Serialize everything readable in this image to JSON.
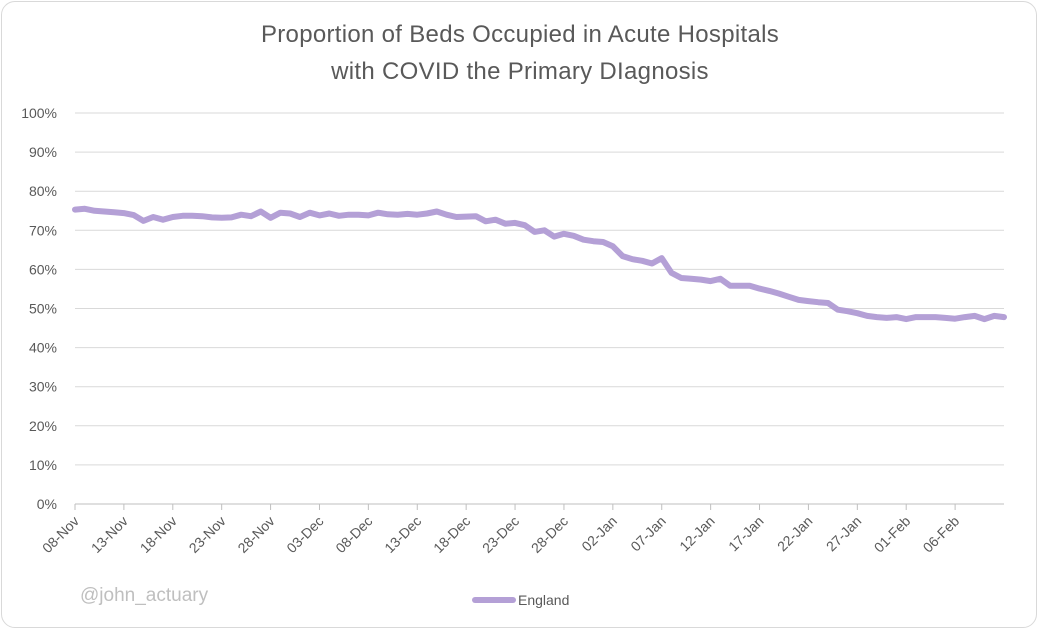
{
  "chart_data": {
    "type": "line",
    "title": "Proportion of Beds Occupied in Acute Hospitals",
    "subtitle": "with COVID the Primary DIagnosis",
    "watermark": "@john_actuary",
    "ylim": [
      0,
      100
    ],
    "y_ticks": [
      "0%",
      "10%",
      "20%",
      "30%",
      "40%",
      "50%",
      "60%",
      "70%",
      "80%",
      "90%",
      "100%"
    ],
    "x_tick_labels": [
      "08-Nov",
      "13-Nov",
      "18-Nov",
      "23-Nov",
      "28-Nov",
      "03-Dec",
      "08-Dec",
      "13-Dec",
      "18-Dec",
      "23-Dec",
      "28-Dec",
      "02-Jan",
      "07-Jan",
      "12-Jan",
      "17-Jan",
      "22-Jan",
      "27-Jan",
      "01-Feb",
      "06-Feb"
    ],
    "x_start": "08-Nov",
    "x_end": "09-Feb",
    "grid": true,
    "legend_position": "bottom",
    "line_color": "#b4a0d6",
    "series": [
      {
        "name": "England",
        "values": [
          75.3,
          75.5,
          75.0,
          74.8,
          74.6,
          74.4,
          73.9,
          72.4,
          73.4,
          72.7,
          73.4,
          73.7,
          73.7,
          73.6,
          73.3,
          73.2,
          73.3,
          74.0,
          73.6,
          74.8,
          73.2,
          74.5,
          74.3,
          73.4,
          74.5,
          73.8,
          74.3,
          73.7,
          74.0,
          74.0,
          73.8,
          74.5,
          74.1,
          74.0,
          74.2,
          74.0,
          74.3,
          74.8,
          74.0,
          73.4,
          73.5,
          73.6,
          72.3,
          72.7,
          71.7,
          71.9,
          71.3,
          69.6,
          70.0,
          68.4,
          69.1,
          68.6,
          67.6,
          67.2,
          67.0,
          65.9,
          63.4,
          62.6,
          62.2,
          61.5,
          62.9,
          59.1,
          57.8,
          57.6,
          57.4,
          57.0,
          57.6,
          55.8,
          55.8,
          55.8,
          55.1,
          54.5,
          53.8,
          53.0,
          52.2,
          51.9,
          51.6,
          51.4,
          49.7,
          49.3,
          48.8,
          48.1,
          47.8,
          47.6,
          47.8,
          47.3,
          47.8,
          47.8,
          47.8,
          47.6,
          47.4,
          47.8,
          48.1,
          47.3,
          48.1,
          47.8
        ]
      }
    ]
  }
}
